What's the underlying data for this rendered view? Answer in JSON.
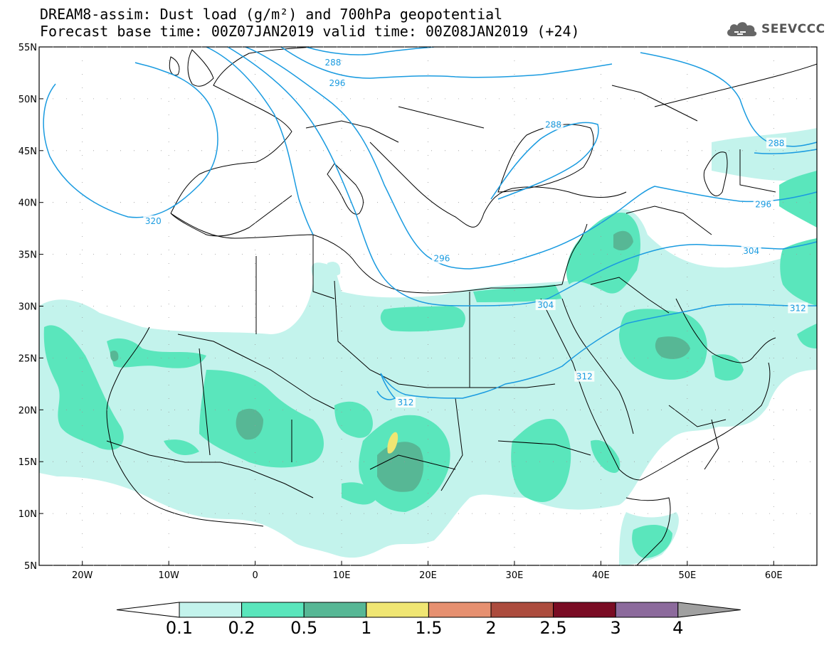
{
  "header": {
    "title_line1": "DREAM8-assim: Dust load (g/m²) and 700hPa geopotential",
    "title_line2": "Forecast base time: 00Z07JAN2019     valid time: 00Z08JAN2019 (+24)"
  },
  "logo": {
    "text": "SEEVCCC",
    "icon": "cloud-icon"
  },
  "map": {
    "projection": "lat-lon",
    "lon_range": [
      -25,
      65
    ],
    "lat_range": [
      5,
      55
    ],
    "lon_ticks": [
      {
        "v": -20,
        "label": "20W"
      },
      {
        "v": -10,
        "label": "10W"
      },
      {
        "v": 0,
        "label": "0"
      },
      {
        "v": 10,
        "label": "10E"
      },
      {
        "v": 20,
        "label": "20E"
      },
      {
        "v": 30,
        "label": "30E"
      },
      {
        "v": 40,
        "label": "40E"
      },
      {
        "v": 50,
        "label": "50E"
      },
      {
        "v": 60,
        "label": "60E"
      }
    ],
    "lat_ticks": [
      {
        "v": 55,
        "label": "55N"
      },
      {
        "v": 50,
        "label": "50N"
      },
      {
        "v": 45,
        "label": "45N"
      },
      {
        "v": 40,
        "label": "40N"
      },
      {
        "v": 35,
        "label": "35N"
      },
      {
        "v": 30,
        "label": "30N"
      },
      {
        "v": 25,
        "label": "25N"
      },
      {
        "v": 20,
        "label": "20N"
      },
      {
        "v": 15,
        "label": "15N"
      },
      {
        "v": 10,
        "label": "10N"
      },
      {
        "v": 5,
        "label": "5N"
      }
    ],
    "contour_color": "#1a9be0",
    "contour_labels": [
      {
        "text": "288",
        "lon": 9,
        "lat": 53.5
      },
      {
        "text": "296",
        "lon": 9.5,
        "lat": 51.5
      },
      {
        "text": "288",
        "lon": 34.5,
        "lat": 47.5
      },
      {
        "text": "288",
        "lon": 60.3,
        "lat": 45.7
      },
      {
        "text": "320",
        "lon": -11.8,
        "lat": 38.2
      },
      {
        "text": "296",
        "lon": 58.8,
        "lat": 39.8
      },
      {
        "text": "296",
        "lon": 21.6,
        "lat": 34.6
      },
      {
        "text": "304",
        "lon": 57.4,
        "lat": 35.3
      },
      {
        "text": "304",
        "lon": 33.6,
        "lat": 30.1
      },
      {
        "text": "312",
        "lon": 62.8,
        "lat": 29.8
      },
      {
        "text": "312",
        "lon": 38.1,
        "lat": 23.2
      },
      {
        "text": "312",
        "lon": 17.4,
        "lat": 20.7
      }
    ]
  },
  "colorbar": {
    "colors": [
      "#c3f3ec",
      "#5ae6bc",
      "#57b795",
      "#f0e673",
      "#e69070",
      "#ac4c3e",
      "#7a0c24",
      "#8c6a9c",
      "#a0a0a0"
    ],
    "labels": [
      "0.1",
      "0.2",
      "0.5",
      "1",
      "1.5",
      "2",
      "2.5",
      "3",
      "4"
    ]
  }
}
